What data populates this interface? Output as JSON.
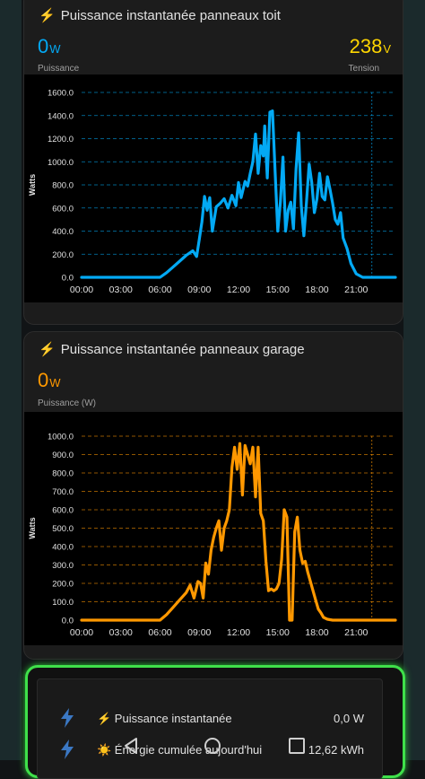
{
  "colors": {
    "blue": "#03a9f4",
    "yellow": "#ffd600",
    "orange": "#ff9800",
    "green_border": "#3fe04a"
  },
  "roof_card": {
    "title": "Puissance instantanée panneaux toit",
    "power_value": "0",
    "power_unit": "W",
    "power_label": "Puissance",
    "voltage_value": "238",
    "voltage_unit": "V",
    "voltage_label": "Tension"
  },
  "garage_card": {
    "title": "Puissance instantanée panneaux garage",
    "power_value": "0",
    "power_unit": "W",
    "power_label": "Puissance (W)"
  },
  "chart_data": [
    {
      "type": "line",
      "ylabel": "Watts",
      "ylim": [
        0,
        1600
      ],
      "yticks": [
        "0.0",
        "200.0",
        "400.0",
        "600.0",
        "800.0",
        "1000.0",
        "1200.0",
        "1400.0",
        "1600.0"
      ],
      "xlim": [
        0,
        24
      ],
      "xticks": [
        "00:00",
        "03:00",
        "06:00",
        "09:00",
        "12:00",
        "15:00",
        "18:00",
        "21:00"
      ],
      "grid": "dashed",
      "now_marker_hour": 22.2,
      "series": [
        {
          "color": "#03a9f4",
          "x": [
            0,
            6,
            6.5,
            7,
            7.5,
            8,
            8.5,
            8.8,
            9,
            9.2,
            9.4,
            9.6,
            9.8,
            10,
            10.3,
            10.6,
            10.9,
            11.2,
            11.5,
            11.8,
            12,
            12.2,
            12.5,
            12.7,
            12.9,
            13.1,
            13.3,
            13.5,
            13.7,
            13.9,
            14,
            14.2,
            14.4,
            14.6,
            14.8,
            15,
            15.2,
            15.4,
            15.6,
            15.8,
            16,
            16.2,
            16.4,
            16.6,
            16.8,
            17,
            17.2,
            17.4,
            17.6,
            17.8,
            18,
            18.2,
            18.4,
            18.6,
            18.8,
            19,
            19.2,
            19.4,
            19.6,
            19.8,
            20,
            20.3,
            20.6,
            21,
            21.5,
            22,
            24
          ],
          "y": [
            0,
            0,
            40,
            90,
            140,
            190,
            230,
            180,
            330,
            480,
            700,
            580,
            690,
            400,
            610,
            640,
            680,
            600,
            710,
            620,
            820,
            690,
            830,
            790,
            900,
            1000,
            1240,
            900,
            1140,
            1050,
            1310,
            860,
            1430,
            1440,
            920,
            400,
            650,
            1040,
            400,
            580,
            650,
            420,
            940,
            1250,
            620,
            360,
            650,
            980,
            820,
            560,
            680,
            900,
            700,
            670,
            870,
            760,
            640,
            500,
            460,
            560,
            340,
            250,
            120,
            30,
            0,
            0,
            0
          ]
        }
      ]
    },
    {
      "type": "line",
      "ylabel": "Watts",
      "ylim": [
        0,
        1000
      ],
      "yticks": [
        "0.0",
        "100.0",
        "200.0",
        "300.0",
        "400.0",
        "500.0",
        "600.0",
        "700.0",
        "800.0",
        "900.0",
        "1000.0"
      ],
      "xlim": [
        0,
        24
      ],
      "xticks": [
        "00:00",
        "03:00",
        "06:00",
        "09:00",
        "12:00",
        "15:00",
        "18:00",
        "21:00"
      ],
      "grid": "dashed",
      "now_marker_hour": 22.2,
      "series": [
        {
          "color": "#ff9800",
          "x": [
            0,
            6,
            6.5,
            7,
            7.5,
            8,
            8.3,
            8.6,
            8.9,
            9.1,
            9.3,
            9.5,
            9.7,
            9.9,
            10.1,
            10.3,
            10.5,
            10.7,
            10.9,
            11.1,
            11.3,
            11.5,
            11.7,
            11.9,
            12.1,
            12.3,
            12.5,
            12.7,
            12.9,
            13.1,
            13.3,
            13.5,
            13.7,
            13.9,
            14.1,
            14.3,
            14.5,
            14.7,
            14.9,
            15.1,
            15.3,
            15.5,
            15.7,
            15.9,
            16.1,
            16.3,
            16.5,
            16.7,
            16.9,
            17.1,
            17.3,
            17.5,
            17.7,
            17.9,
            18.1,
            18.3,
            18.5,
            18.8,
            19.2,
            19.6,
            20,
            20.4,
            21,
            21.5,
            24
          ],
          "y": [
            0,
            0,
            30,
            70,
            110,
            150,
            190,
            120,
            210,
            200,
            120,
            310,
            250,
            380,
            450,
            500,
            540,
            380,
            500,
            540,
            600,
            830,
            940,
            820,
            960,
            680,
            950,
            900,
            850,
            940,
            670,
            940,
            580,
            540,
            320,
            160,
            170,
            160,
            170,
            200,
            330,
            600,
            560,
            0,
            0,
            480,
            560,
            380,
            310,
            320,
            260,
            210,
            160,
            110,
            60,
            40,
            15,
            5,
            0,
            0,
            0,
            0,
            0,
            0,
            0
          ]
        }
      ]
    }
  ],
  "energy_card": {
    "rows": [
      {
        "prefix_icon": "bolt-icon",
        "label": "⚡ Puissance instantanée",
        "value": "0,0 W"
      },
      {
        "prefix_icon": "sun-icon",
        "label": "☀️ Énergie cumulée aujourd'hui",
        "value": "12,62 kWh"
      }
    ]
  },
  "nav_bar": {
    "buttons": [
      "back",
      "home",
      "recents"
    ]
  }
}
